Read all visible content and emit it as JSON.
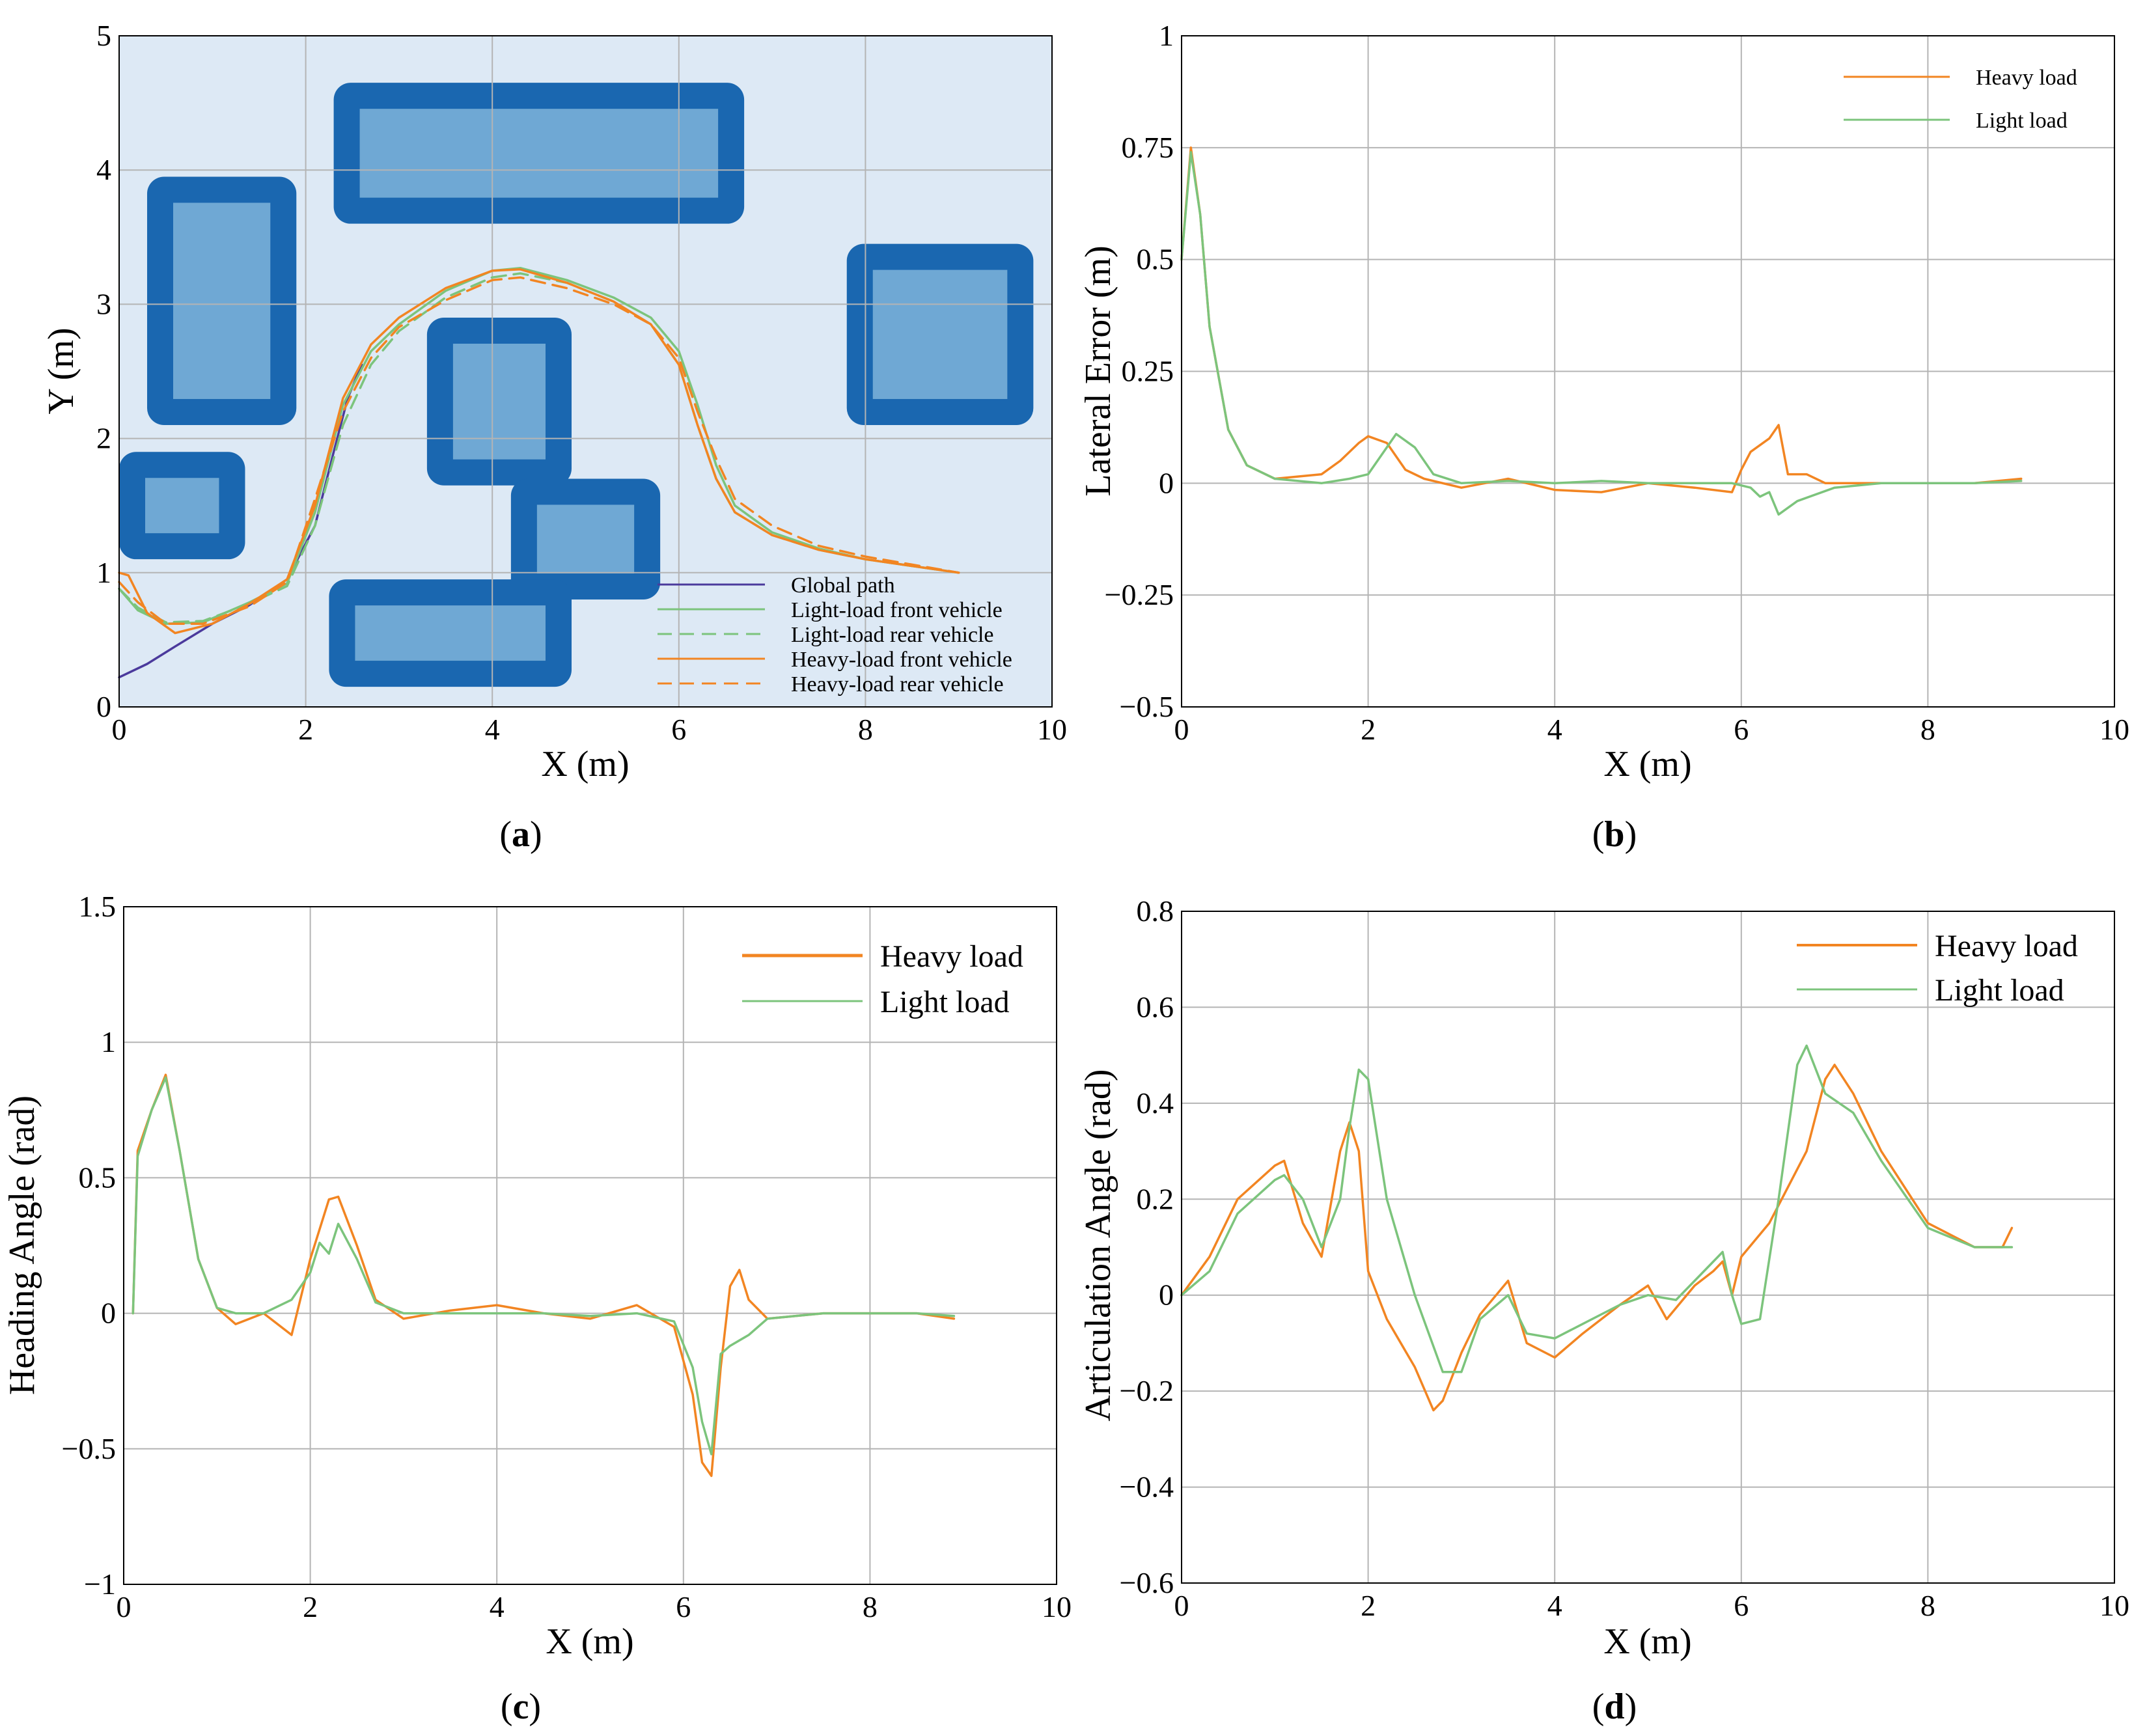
{
  "captions": {
    "a": {
      "open": "(",
      "letter": "a",
      "close": ")"
    },
    "b": {
      "open": "(",
      "letter": "b",
      "close": ")"
    },
    "c": {
      "open": "(",
      "letter": "c",
      "close": ")"
    },
    "d": {
      "open": "(",
      "letter": "d",
      "close": ")"
    }
  },
  "colors": {
    "heavy": "#f28522",
    "light": "#7cc47c",
    "global": "#4b3a9c",
    "map_bg": "#dde9f5",
    "obstacle_edge": "#1a67b0",
    "obstacle_fill": "#6fa8d4"
  },
  "chart_data": [
    {
      "id": "a",
      "type": "line",
      "xlabel": "X (m)",
      "ylabel": "Y (m)",
      "xlim": [
        0,
        10
      ],
      "ylim": [
        0,
        5
      ],
      "xticks": [
        "0",
        "2",
        "4",
        "6",
        "8",
        "10"
      ],
      "yticks": [
        "0",
        "1",
        "2",
        "3",
        "4",
        "5"
      ],
      "grid": true,
      "legend": "bottom-right",
      "obstacles": [
        {
          "x0": 2.3,
          "y0": 3.6,
          "x1": 6.7,
          "y1": 4.65
        },
        {
          "x0": 0.3,
          "y0": 2.1,
          "x1": 1.9,
          "y1": 3.95
        },
        {
          "x0": 7.8,
          "y0": 2.1,
          "x1": 9.8,
          "y1": 3.45
        },
        {
          "x0": 3.3,
          "y0": 1.65,
          "x1": 4.85,
          "y1": 2.9
        },
        {
          "x0": 0.0,
          "y0": 1.1,
          "x1": 1.35,
          "y1": 1.9
        },
        {
          "x0": 4.2,
          "y0": 0.8,
          "x1": 5.8,
          "y1": 1.7
        },
        {
          "x0": 2.25,
          "y0": 0.15,
          "x1": 4.85,
          "y1": 0.95
        }
      ],
      "series": [
        {
          "name": "Global path",
          "style": "solid",
          "color": "#4b3a9c",
          "x": [
            0,
            0.3,
            0.6,
            1.0,
            1.4,
            1.8,
            2.1,
            2.3,
            2.45,
            2.6
          ],
          "y": [
            0.22,
            0.32,
            0.45,
            0.62,
            0.76,
            0.95,
            1.35,
            1.9,
            2.3,
            2.55
          ]
        },
        {
          "name": "Light-load front vehicle",
          "style": "solid",
          "color": "#7cc47c",
          "x": [
            0,
            0.2,
            0.5,
            0.9,
            1.4,
            1.8,
            2.1,
            2.4,
            2.7,
            3.0,
            3.5,
            4.0,
            4.3,
            4.8,
            5.3,
            5.7,
            6.0,
            6.2,
            6.4,
            6.6,
            7.0,
            7.5,
            8.0,
            8.5,
            9.0
          ],
          "y": [
            0.88,
            0.72,
            0.62,
            0.63,
            0.78,
            0.92,
            1.45,
            2.25,
            2.65,
            2.85,
            3.1,
            3.25,
            3.27,
            3.18,
            3.05,
            2.9,
            2.65,
            2.25,
            1.8,
            1.5,
            1.3,
            1.18,
            1.1,
            1.05,
            1.0
          ]
        },
        {
          "name": "Light-load rear vehicle",
          "style": "dashed",
          "color": "#7cc47c",
          "x": [
            0,
            0.2,
            0.5,
            0.9,
            1.4,
            1.8,
            2.1,
            2.4,
            2.7,
            3.0,
            3.5,
            4.0,
            4.3,
            4.8,
            5.3,
            5.7,
            6.0,
            6.2,
            6.4,
            6.6,
            7.0,
            7.5,
            8.0,
            8.5,
            9.0
          ],
          "y": [
            0.88,
            0.74,
            0.63,
            0.64,
            0.77,
            0.9,
            1.35,
            2.1,
            2.55,
            2.8,
            3.05,
            3.2,
            3.23,
            3.16,
            3.02,
            2.85,
            2.55,
            2.1,
            1.7,
            1.45,
            1.28,
            1.17,
            1.1,
            1.05,
            1.0
          ]
        },
        {
          "name": "Heavy-load front vehicle",
          "style": "solid",
          "color": "#f28522",
          "x": [
            0,
            0.1,
            0.3,
            0.6,
            1.0,
            1.4,
            1.8,
            2.1,
            2.4,
            2.7,
            3.0,
            3.5,
            4.0,
            4.3,
            4.8,
            5.3,
            5.7,
            6.0,
            6.2,
            6.4,
            6.6,
            7.0,
            7.5,
            8.0,
            8.5,
            9.0
          ],
          "y": [
            1.0,
            0.98,
            0.7,
            0.55,
            0.62,
            0.77,
            0.95,
            1.5,
            2.3,
            2.7,
            2.9,
            3.12,
            3.25,
            3.26,
            3.16,
            3.02,
            2.85,
            2.55,
            2.1,
            1.7,
            1.45,
            1.28,
            1.17,
            1.1,
            1.05,
            1.0
          ]
        },
        {
          "name": "Heavy-load rear vehicle",
          "style": "dashed",
          "color": "#f28522",
          "x": [
            0,
            0.2,
            0.5,
            0.9,
            1.4,
            1.8,
            2.1,
            2.4,
            2.7,
            3.0,
            3.5,
            4.0,
            4.3,
            4.8,
            5.3,
            5.7,
            6.0,
            6.2,
            6.4,
            6.6,
            7.0,
            7.5,
            8.0,
            8.5,
            9.0
          ],
          "y": [
            0.93,
            0.78,
            0.62,
            0.62,
            0.75,
            0.93,
            1.55,
            2.2,
            2.6,
            2.83,
            3.03,
            3.18,
            3.2,
            3.12,
            3.0,
            2.85,
            2.6,
            2.2,
            1.85,
            1.55,
            1.35,
            1.2,
            1.12,
            1.06,
            1.0
          ]
        }
      ]
    },
    {
      "id": "b",
      "type": "line",
      "xlabel": "X (m)",
      "ylabel": "Lateral Error (m)",
      "xlim": [
        0,
        10
      ],
      "ylim": [
        -0.5,
        1
      ],
      "xticks": [
        "0",
        "2",
        "4",
        "6",
        "8",
        "10"
      ],
      "yticks": [
        "-0.5",
        "-0.25",
        "0",
        "0.25",
        "0.5",
        "0.75",
        "1"
      ],
      "ytick_values": [
        -0.5,
        -0.25,
        0,
        0.25,
        0.5,
        0.75,
        1
      ],
      "grid": true,
      "legend": "top-right",
      "series": [
        {
          "name": "Heavy load",
          "color": "#f28522",
          "x": [
            0,
            0.1,
            0.2,
            0.3,
            0.5,
            0.7,
            1.0,
            1.5,
            1.7,
            1.9,
            2.0,
            2.2,
            2.4,
            2.6,
            3.0,
            3.5,
            4.0,
            4.5,
            5.0,
            5.5,
            5.9,
            6.0,
            6.1,
            6.3,
            6.4,
            6.5,
            6.7,
            6.9,
            7.5,
            8.5,
            9.0
          ],
          "y": [
            0.5,
            0.75,
            0.6,
            0.35,
            0.12,
            0.04,
            0.01,
            0.02,
            0.05,
            0.09,
            0.105,
            0.09,
            0.03,
            0.01,
            -0.01,
            0.01,
            -0.015,
            -0.02,
            0.0,
            -0.01,
            -0.02,
            0.03,
            0.07,
            0.1,
            0.13,
            0.02,
            0.02,
            0.0,
            0.0,
            0.0,
            0.01
          ]
        },
        {
          "name": "Light load",
          "color": "#7cc47c",
          "x": [
            0,
            0.1,
            0.2,
            0.3,
            0.5,
            0.7,
            1.0,
            1.5,
            1.8,
            2.0,
            2.1,
            2.3,
            2.5,
            2.7,
            3.0,
            3.5,
            4.0,
            4.5,
            5.0,
            5.5,
            5.9,
            6.1,
            6.2,
            6.3,
            6.4,
            6.6,
            7.0,
            7.5,
            8.5,
            9.0
          ],
          "y": [
            0.5,
            0.74,
            0.6,
            0.35,
            0.12,
            0.04,
            0.01,
            0.0,
            0.01,
            0.02,
            0.05,
            0.11,
            0.08,
            0.02,
            0.0,
            0.005,
            0.0,
            0.005,
            0.0,
            0.0,
            0.0,
            -0.01,
            -0.03,
            -0.02,
            -0.07,
            -0.04,
            -0.01,
            0.0,
            0.0,
            0.005
          ]
        }
      ]
    },
    {
      "id": "c",
      "type": "line",
      "xlabel": "X (m)",
      "ylabel": "Heading Angle (rad)",
      "xlim": [
        0,
        10
      ],
      "ylim": [
        -1,
        1.5
      ],
      "xticks": [
        "0",
        "2",
        "4",
        "6",
        "8",
        "10"
      ],
      "yticks": [
        "-1",
        "-0.5",
        "0",
        "0.5",
        "1",
        "1.5"
      ],
      "ytick_values": [
        -1,
        -0.5,
        0,
        0.5,
        1,
        1.5
      ],
      "grid": true,
      "legend": "top-right",
      "series": [
        {
          "name": "Heavy load",
          "color": "#f28522",
          "x": [
            0.1,
            0.15,
            0.3,
            0.45,
            0.6,
            0.8,
            1.0,
            1.2,
            1.5,
            1.8,
            2.0,
            2.2,
            2.3,
            2.5,
            2.7,
            3.0,
            3.5,
            4.0,
            4.5,
            5.0,
            5.5,
            5.9,
            6.1,
            6.2,
            6.3,
            6.4,
            6.5,
            6.6,
            6.7,
            6.9,
            7.5,
            8.5,
            8.9
          ],
          "y": [
            0.0,
            0.6,
            0.75,
            0.88,
            0.6,
            0.2,
            0.02,
            -0.04,
            0.0,
            -0.08,
            0.2,
            0.42,
            0.43,
            0.25,
            0.05,
            -0.02,
            0.01,
            0.03,
            0.0,
            -0.02,
            0.03,
            -0.05,
            -0.3,
            -0.55,
            -0.6,
            -0.2,
            0.1,
            0.16,
            0.05,
            -0.02,
            0.0,
            0.0,
            -0.02
          ]
        },
        {
          "name": "Light load",
          "color": "#7cc47c",
          "x": [
            0.1,
            0.15,
            0.3,
            0.45,
            0.6,
            0.8,
            1.0,
            1.2,
            1.5,
            1.8,
            2.0,
            2.1,
            2.2,
            2.3,
            2.5,
            2.7,
            3.0,
            3.5,
            4.0,
            4.5,
            5.0,
            5.5,
            5.9,
            6.1,
            6.2,
            6.3,
            6.4,
            6.5,
            6.7,
            6.9,
            7.5,
            8.5,
            8.9
          ],
          "y": [
            0.0,
            0.58,
            0.75,
            0.87,
            0.6,
            0.2,
            0.02,
            0.0,
            0.0,
            0.05,
            0.15,
            0.26,
            0.22,
            0.33,
            0.2,
            0.04,
            0.0,
            0.0,
            0.0,
            0.0,
            -0.01,
            0.0,
            -0.03,
            -0.2,
            -0.4,
            -0.52,
            -0.15,
            -0.12,
            -0.08,
            -0.02,
            0.0,
            0.0,
            -0.01
          ]
        }
      ]
    },
    {
      "id": "d",
      "type": "line",
      "xlabel": "X (m)",
      "ylabel": "Articulation Angle (rad)",
      "xlim": [
        0,
        10
      ],
      "ylim": [
        -0.6,
        0.8
      ],
      "xticks": [
        "0",
        "2",
        "4",
        "6",
        "8",
        "10"
      ],
      "yticks": [
        "-0.6",
        "-0.4",
        "-0.2",
        "0",
        "0.2",
        "0.4",
        "0.6",
        "0.8"
      ],
      "ytick_values": [
        -0.6,
        -0.4,
        -0.2,
        0,
        0.2,
        0.4,
        0.6,
        0.8
      ],
      "grid": true,
      "legend": "top-right",
      "series": [
        {
          "name": "Heavy load",
          "color": "#f28522",
          "x": [
            0,
            0.3,
            0.6,
            1.0,
            1.1,
            1.3,
            1.5,
            1.7,
            1.8,
            1.9,
            2.0,
            2.2,
            2.5,
            2.7,
            2.8,
            3.0,
            3.2,
            3.5,
            3.7,
            4.0,
            4.3,
            4.7,
            5.0,
            5.2,
            5.5,
            5.7,
            5.8,
            5.9,
            6.0,
            6.3,
            6.7,
            6.9,
            7.0,
            7.2,
            7.5,
            8.0,
            8.5,
            8.8,
            8.9
          ],
          "y": [
            0.0,
            0.08,
            0.2,
            0.27,
            0.28,
            0.15,
            0.08,
            0.3,
            0.36,
            0.3,
            0.05,
            -0.05,
            -0.15,
            -0.24,
            -0.22,
            -0.12,
            -0.04,
            0.03,
            -0.1,
            -0.13,
            -0.08,
            -0.02,
            0.02,
            -0.05,
            0.02,
            0.05,
            0.07,
            0.0,
            0.08,
            0.15,
            0.3,
            0.45,
            0.48,
            0.42,
            0.3,
            0.15,
            0.1,
            0.1,
            0.14
          ]
        },
        {
          "name": "Light load",
          "color": "#7cc47c",
          "x": [
            0,
            0.3,
            0.6,
            1.0,
            1.1,
            1.3,
            1.5,
            1.7,
            1.8,
            1.9,
            2.0,
            2.2,
            2.5,
            2.8,
            3.0,
            3.2,
            3.5,
            3.7,
            4.0,
            4.3,
            4.7,
            5.0,
            5.3,
            5.6,
            5.8,
            5.9,
            6.0,
            6.2,
            6.4,
            6.6,
            6.7,
            6.9,
            7.2,
            7.5,
            8.0,
            8.5,
            8.9
          ],
          "y": [
            0.0,
            0.05,
            0.17,
            0.24,
            0.25,
            0.2,
            0.1,
            0.2,
            0.35,
            0.47,
            0.45,
            0.2,
            0.0,
            -0.16,
            -0.16,
            -0.05,
            0.0,
            -0.08,
            -0.09,
            -0.06,
            -0.02,
            0.0,
            -0.01,
            0.05,
            0.09,
            0.0,
            -0.06,
            -0.05,
            0.2,
            0.48,
            0.52,
            0.42,
            0.38,
            0.28,
            0.14,
            0.1,
            0.1
          ]
        }
      ]
    }
  ]
}
